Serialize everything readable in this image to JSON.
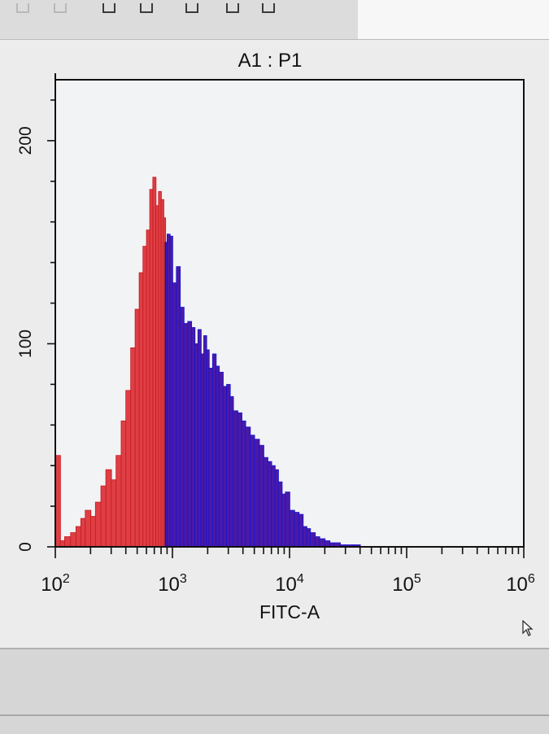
{
  "chart_data": {
    "type": "histogram",
    "title": "A1 : P1",
    "xlabel": "FITC-A",
    "ylabel": "",
    "x_scale": "log",
    "xlim": [
      100,
      1000000
    ],
    "ylim": [
      0,
      230
    ],
    "x_ticks": [
      {
        "value": 100,
        "base": "10",
        "exp": "2"
      },
      {
        "value": 1000,
        "base": "10",
        "exp": "3"
      },
      {
        "value": 10000,
        "base": "10",
        "exp": "4"
      },
      {
        "value": 100000,
        "base": "10",
        "exp": "5"
      },
      {
        "value": 1000000,
        "base": "10",
        "exp": "6"
      }
    ],
    "y_ticks": [
      "0",
      "100",
      "200"
    ],
    "y_tick_values": [
      0,
      100,
      200
    ],
    "gate_boundary_x": 870,
    "grid": false,
    "colors": {
      "gated_out": "#dd3f45",
      "gated_out_edge": "#c7161d",
      "gated_in": "#4a1aa6",
      "gated_in_edge": "#1212d6",
      "axis": "#111111",
      "plot_bg": "#f2f3f4"
    },
    "histogram": {
      "x": [
        100,
        110,
        120,
        135,
        150,
        165,
        180,
        200,
        220,
        245,
        270,
        300,
        330,
        365,
        400,
        440,
        480,
        520,
        560,
        600,
        640,
        680,
        720,
        760,
        800,
        840,
        870,
        900,
        950,
        1000,
        1080,
        1160,
        1250,
        1350,
        1450,
        1550,
        1650,
        1750,
        1850,
        1950,
        2050,
        2200,
        2350,
        2500,
        2700,
        2900,
        3100,
        3300,
        3600,
        3900,
        4200,
        4600,
        5000,
        5500,
        6000,
        6500,
        7000,
        7500,
        8000,
        8600,
        9200,
        10000,
        11000,
        12000,
        13000,
        14000,
        15000,
        16500,
        18000,
        20000,
        22000,
        24000,
        27000,
        30000,
        35000,
        40000
      ],
      "y": [
        45,
        3,
        5,
        7,
        10,
        14,
        18,
        15,
        22,
        30,
        38,
        33,
        45,
        62,
        77,
        98,
        117,
        135,
        148,
        156,
        176,
        182,
        168,
        175,
        171,
        162,
        150,
        154,
        153,
        130,
        138,
        118,
        110,
        111,
        108,
        100,
        107,
        95,
        104,
        97,
        88,
        95,
        89,
        86,
        79,
        80,
        74,
        67,
        66,
        62,
        59,
        55,
        53,
        50,
        44,
        42,
        40,
        38,
        32,
        26,
        27,
        18,
        17,
        16,
        10,
        9,
        7,
        5,
        4,
        3,
        2,
        2,
        1,
        1,
        1,
        0
      ]
    }
  }
}
